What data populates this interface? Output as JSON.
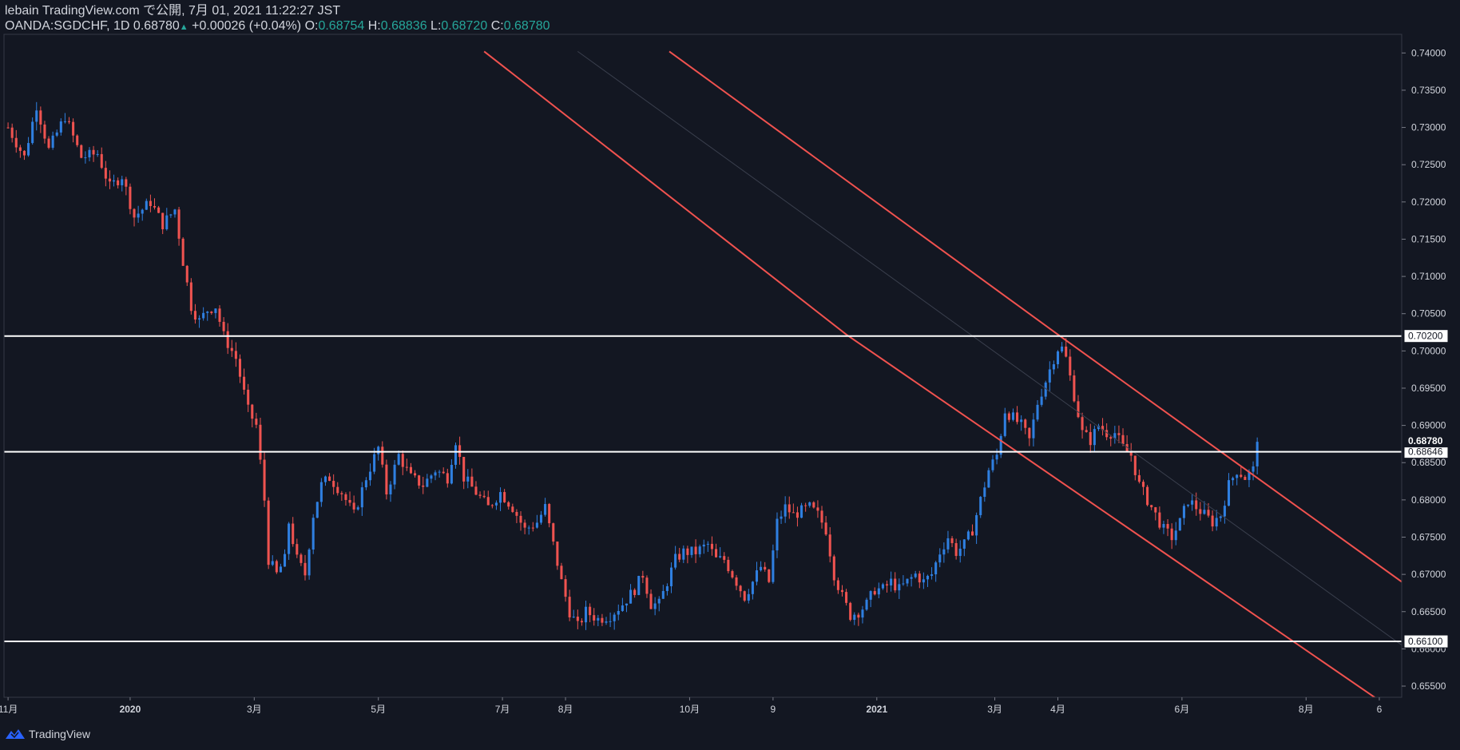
{
  "header": {
    "author": "lebain",
    "published": "TradingView.com で公開, 7月 01, 2021 11:22:27 JST",
    "symbol": "OANDA:SGDCHF, 1D",
    "last": "0.68780",
    "change_arrow": "▲",
    "change": "+0.00026 (+0.04%)",
    "o_label": "O:",
    "o_value": "0.68754",
    "h_label": "H:",
    "h_value": "0.68836",
    "l_label": "L:",
    "l_value": "0.68720",
    "c_label": "C:",
    "c_value": "0.68780"
  },
  "brand": {
    "name": "TradingView",
    "icon": "tradingview-logo-icon"
  },
  "colors": {
    "background": "#131722",
    "bull": "#2f7fe0",
    "bear": "#ef5350",
    "channel": "#f0524f",
    "level": "#ffffff",
    "axis_text": "#d1d4dc"
  },
  "chart_data": {
    "type": "candlestick",
    "title": "OANDA:SGDCHF, 1D",
    "ylim": [
      0.6535,
      0.7425
    ],
    "y_ticks": [
      "0.74000",
      "0.73500",
      "0.73000",
      "0.72500",
      "0.72000",
      "0.71500",
      "0.71000",
      "0.70500",
      "0.70000",
      "0.69500",
      "0.69000",
      "0.68500",
      "0.68000",
      "0.67500",
      "0.67000",
      "0.66500",
      "0.66000",
      "0.65500"
    ],
    "x_ticks": [
      {
        "label": "11月",
        "day": 0
      },
      {
        "label": "2020",
        "day": 60
      },
      {
        "label": "3月",
        "day": 121
      },
      {
        "label": "5月",
        "day": 182
      },
      {
        "label": "7月",
        "day": 243
      },
      {
        "label": "8月",
        "day": 274
      },
      {
        "label": "10月",
        "day": 335
      },
      {
        "label": "9",
        "day": 376
      },
      {
        "label": "2021",
        "day": 427
      },
      {
        "label": "3月",
        "day": 485
      },
      {
        "label": "4月",
        "day": 516
      },
      {
        "label": "6月",
        "day": 577
      },
      {
        "label": "8月",
        "day": 638
      },
      {
        "label": "6",
        "day": 674
      }
    ],
    "x_domain": [
      -2,
      685
    ],
    "close_path": [
      [
        0,
        0.73
      ],
      [
        8,
        0.726
      ],
      [
        14,
        0.733
      ],
      [
        20,
        0.727
      ],
      [
        28,
        0.7315
      ],
      [
        36,
        0.726
      ],
      [
        44,
        0.7265
      ],
      [
        50,
        0.722
      ],
      [
        56,
        0.7235
      ],
      [
        62,
        0.718
      ],
      [
        70,
        0.72
      ],
      [
        76,
        0.717
      ],
      [
        82,
        0.719
      ],
      [
        86,
        0.712
      ],
      [
        90,
        0.706
      ],
      [
        94,
        0.704
      ],
      [
        98,
        0.7055
      ],
      [
        102,
        0.706
      ],
      [
        106,
        0.702
      ],
      [
        112,
        0.699
      ],
      [
        118,
        0.692
      ],
      [
        122,
        0.69
      ],
      [
        126,
        0.68
      ],
      [
        128,
        0.672
      ],
      [
        132,
        0.67
      ],
      [
        136,
        0.672
      ],
      [
        138,
        0.677
      ],
      [
        142,
        0.672
      ],
      [
        146,
        0.67
      ],
      [
        150,
        0.678
      ],
      [
        154,
        0.682
      ],
      [
        158,
        0.683
      ],
      [
        164,
        0.681
      ],
      [
        170,
        0.678
      ],
      [
        176,
        0.683
      ],
      [
        182,
        0.687
      ],
      [
        186,
        0.681
      ],
      [
        192,
        0.686
      ],
      [
        198,
        0.683
      ],
      [
        204,
        0.682
      ],
      [
        210,
        0.684
      ],
      [
        216,
        0.683
      ],
      [
        220,
        0.688
      ],
      [
        224,
        0.683
      ],
      [
        230,
        0.681
      ],
      [
        236,
        0.679
      ],
      [
        242,
        0.681
      ],
      [
        248,
        0.679
      ],
      [
        254,
        0.676
      ],
      [
        260,
        0.677
      ],
      [
        264,
        0.679
      ],
      [
        268,
        0.674
      ],
      [
        272,
        0.669
      ],
      [
        276,
        0.665
      ],
      [
        280,
        0.663
      ],
      [
        284,
        0.665
      ],
      [
        290,
        0.664
      ],
      [
        296,
        0.6645
      ],
      [
        302,
        0.666
      ],
      [
        308,
        0.668
      ],
      [
        312,
        0.67
      ],
      [
        316,
        0.666
      ],
      [
        320,
        0.666
      ],
      [
        324,
        0.669
      ],
      [
        328,
        0.672
      ],
      [
        332,
        0.673
      ],
      [
        338,
        0.673
      ],
      [
        344,
        0.674
      ],
      [
        348,
        0.672
      ],
      [
        352,
        0.672
      ],
      [
        358,
        0.669
      ],
      [
        362,
        0.667
      ],
      [
        366,
        0.669
      ],
      [
        370,
        0.671
      ],
      [
        374,
        0.669
      ],
      [
        378,
        0.677
      ],
      [
        382,
        0.679
      ],
      [
        386,
        0.678
      ],
      [
        390,
        0.6785
      ],
      [
        394,
        0.679
      ],
      [
        398,
        0.678
      ],
      [
        402,
        0.676
      ],
      [
        406,
        0.67
      ],
      [
        410,
        0.667
      ],
      [
        414,
        0.6645
      ],
      [
        418,
        0.665
      ],
      [
        422,
        0.666
      ],
      [
        426,
        0.668
      ],
      [
        430,
        0.668
      ],
      [
        434,
        0.669
      ],
      [
        438,
        0.668
      ],
      [
        442,
        0.669
      ],
      [
        446,
        0.67
      ],
      [
        450,
        0.669
      ],
      [
        454,
        0.67
      ],
      [
        458,
        0.673
      ],
      [
        462,
        0.675
      ],
      [
        466,
        0.673
      ],
      [
        470,
        0.674
      ],
      [
        474,
        0.676
      ],
      [
        478,
        0.68
      ],
      [
        482,
        0.684
      ],
      [
        486,
        0.686
      ],
      [
        490,
        0.692
      ],
      [
        494,
        0.691
      ],
      [
        498,
        0.69
      ],
      [
        502,
        0.688
      ],
      [
        506,
        0.693
      ],
      [
        510,
        0.696
      ],
      [
        514,
        0.699
      ],
      [
        517,
        0.701
      ],
      [
        520,
        0.699
      ],
      [
        524,
        0.694
      ],
      [
        528,
        0.689
      ],
      [
        532,
        0.688
      ],
      [
        536,
        0.69
      ],
      [
        540,
        0.689
      ],
      [
        544,
        0.689
      ],
      [
        548,
        0.687
      ],
      [
        552,
        0.686
      ],
      [
        556,
        0.682
      ],
      [
        560,
        0.68
      ],
      [
        564,
        0.678
      ],
      [
        568,
        0.676
      ],
      [
        572,
        0.675
      ],
      [
        576,
        0.677
      ],
      [
        580,
        0.68
      ],
      [
        584,
        0.679
      ],
      [
        588,
        0.678
      ],
      [
        592,
        0.677
      ],
      [
        596,
        0.678
      ],
      [
        600,
        0.682
      ],
      [
        604,
        0.684
      ],
      [
        608,
        0.683
      ],
      [
        612,
        0.684
      ],
      [
        614,
        0.6878
      ]
    ],
    "channel": {
      "upper": [
        [
          325,
          0.7402
        ],
        [
          516,
          0.7022
        ],
        [
          685,
          0.669
        ]
      ],
      "lower": [
        [
          234,
          0.7402
        ],
        [
          412,
          0.7022
        ],
        [
          685,
          0.651
        ]
      ],
      "midline": [
        [
          280,
          0.7402
        ],
        [
          685,
          0.6605
        ]
      ]
    },
    "horizontal_levels": [
      {
        "value": 0.702,
        "label": "0.70200"
      },
      {
        "value": 0.68646,
        "label": "0.68646"
      },
      {
        "value": 0.661,
        "label": "0.66100"
      }
    ],
    "last_price": {
      "value": 0.6878,
      "label": "0.68780"
    }
  }
}
